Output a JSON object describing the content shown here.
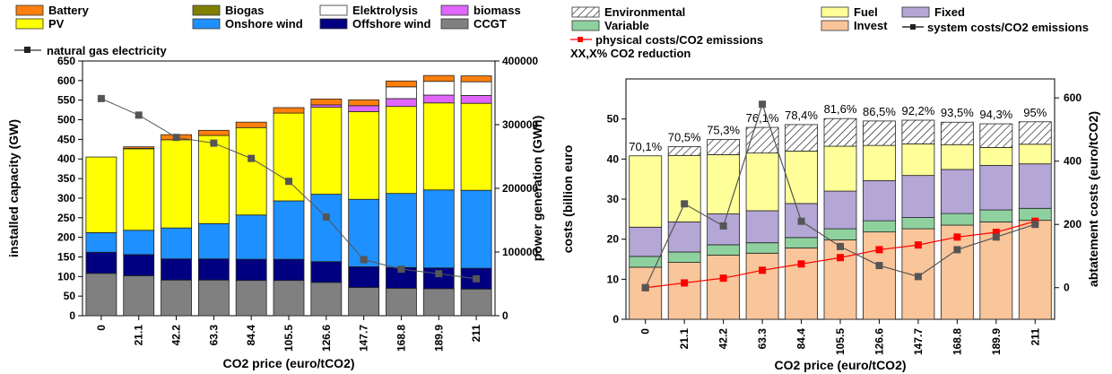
{
  "chart_data": [
    {
      "type": "bar",
      "stacked": true,
      "categories": [
        "0",
        "21.1",
        "42.2",
        "63.3",
        "84.4",
        "105.5",
        "126.6",
        "147.7",
        "168.8",
        "189.9",
        "211"
      ],
      "xlabel": "CO2 price (euro/tCO2)",
      "ylabel": "installed capacity (GW)",
      "ylim": [
        0,
        650
      ],
      "yticks": [
        0,
        50,
        100,
        150,
        200,
        250,
        300,
        350,
        400,
        450,
        500,
        550,
        600,
        650
      ],
      "y2label": "power generation (GWh)",
      "y2lim": [
        0,
        400000
      ],
      "y2ticks": [
        0,
        100000,
        200000,
        300000,
        400000
      ],
      "legend": [
        {
          "name": "Battery",
          "color": "#ff7f0e"
        },
        {
          "name": "Biogas",
          "color": "#808000"
        },
        {
          "name": "Elektrolysis",
          "color": "#ffffff"
        },
        {
          "name": "biomass",
          "color": "#e066ff"
        },
        {
          "name": "PV",
          "color": "#ffff00"
        },
        {
          "name": "Onshore wind",
          "color": "#1e90ff"
        },
        {
          "name": "Offshore wind",
          "color": "#000080"
        },
        {
          "name": "CCGT",
          "color": "#808080"
        }
      ],
      "stack_order": [
        "CCGT",
        "Offshore wind",
        "Onshore wind",
        "PV",
        "Biogas",
        "biomass",
        "Elektrolysis",
        "Battery"
      ],
      "series": [
        {
          "name": "CCGT",
          "color": "#808080",
          "values": [
            108,
            102,
            91,
            91,
            90,
            90,
            85,
            72,
            70,
            69,
            68
          ]
        },
        {
          "name": "Offshore wind",
          "color": "#000080",
          "values": [
            54,
            54,
            54,
            54,
            54,
            54,
            53,
            53,
            53,
            53,
            53
          ]
        },
        {
          "name": "Onshore wind",
          "color": "#1e90ff",
          "values": [
            50,
            62,
            79,
            90,
            113,
            149,
            172,
            172,
            189,
            199,
            199
          ]
        },
        {
          "name": "PV",
          "color": "#ffff00",
          "values": [
            193,
            208,
            225,
            225,
            223,
            224,
            222,
            224,
            222,
            222,
            222
          ]
        },
        {
          "name": "Biogas",
          "color": "#808000",
          "values": [
            0,
            1,
            0,
            0,
            0,
            0,
            0,
            0,
            0,
            0,
            0
          ]
        },
        {
          "name": "biomass",
          "color": "#e066ff",
          "values": [
            0,
            0,
            0,
            0,
            0,
            0,
            6,
            15,
            20,
            20,
            20
          ]
        },
        {
          "name": "Elektrolysis",
          "color": "#ffffff",
          "values": [
            0,
            0,
            0,
            0,
            0,
            0,
            0,
            0,
            30,
            35,
            35
          ]
        },
        {
          "name": "Battery",
          "color": "#ff7f0e",
          "values": [
            0,
            4,
            13,
            13,
            14,
            14,
            15,
            15,
            15,
            15,
            15
          ]
        }
      ],
      "line_series": {
        "name": "natural gas electricity",
        "axis": "right",
        "color": "#555555",
        "values": [
          341000,
          315000,
          280000,
          271000,
          247000,
          211000,
          155000,
          88000,
          73000,
          66000,
          58000
        ]
      }
    },
    {
      "type": "bar",
      "stacked": true,
      "categories": [
        "0",
        "21.1",
        "42.2",
        "63.3",
        "84.4",
        "105.5",
        "126.6",
        "147.7",
        "168.8",
        "189.9",
        "211"
      ],
      "xlabel": "CO2 price (euro/tCO2)",
      "ylabel": "costs (billion euro",
      "ylim": [
        0,
        60
      ],
      "yticks": [
        0,
        10,
        20,
        30,
        40,
        50
      ],
      "y2label": "abtatement costs (euro/tCO2)",
      "y2lim": [
        -100,
        660
      ],
      "y2ticks": [
        0,
        200,
        400,
        600
      ],
      "legend": [
        {
          "name": "Environmental",
          "color": "#ffffff",
          "hatch": true
        },
        {
          "name": "Fuel",
          "color": "#ffff99"
        },
        {
          "name": "Fixed",
          "color": "#b4a7d6"
        },
        {
          "name": "Variable",
          "color": "#8fd19e"
        },
        {
          "name": "Invest",
          "color": "#f9c59a"
        }
      ],
      "legend_lines": [
        {
          "name": "physical costs/CO2 emissions",
          "color": "#ff0000"
        },
        {
          "name": "system costs/CO2 emissions",
          "color": "#555555"
        }
      ],
      "legend_note": "XX,X% CO2 reduction",
      "stack_order": [
        "Invest",
        "Variable",
        "Fixed",
        "Fuel",
        "Environmental"
      ],
      "series": [
        {
          "name": "Invest",
          "color": "#f9c59a",
          "values": [
            13,
            14.2,
            16,
            16.5,
            17.8,
            19.8,
            21.8,
            22.6,
            23.5,
            24.3,
            24.7
          ]
        },
        {
          "name": "Variable",
          "color": "#8fd19e",
          "values": [
            2.7,
            2.6,
            2.6,
            2.6,
            2.6,
            2.8,
            2.8,
            2.8,
            2.9,
            3,
            3
          ]
        },
        {
          "name": "Fixed",
          "color": "#b4a7d6",
          "values": [
            7.3,
            7.5,
            7.7,
            8,
            8.5,
            9.4,
            10,
            10.5,
            11,
            11.1,
            11.1
          ]
        },
        {
          "name": "Fuel",
          "color": "#ffff99",
          "values": [
            17.8,
            16.6,
            14.8,
            14.4,
            13.1,
            11.2,
            8.8,
            7.9,
            6.2,
            4.5,
            4.9
          ]
        },
        {
          "name": "Environmental",
          "hatch": true,
          "color": "#ffffff",
          "values": [
            0,
            2.2,
            3.8,
            6.4,
            6.6,
            6.9,
            6.1,
            5.9,
            5.6,
            5.9,
            5.6
          ]
        }
      ],
      "labels": [
        "70,1%",
        "70,5%",
        "75,3%",
        "76,1%",
        "78,4%",
        "81,6%",
        "86,5%",
        "92,2%",
        "93,5%",
        "94,3%",
        "95%"
      ],
      "line_series": [
        {
          "name": "physical costs/CO2 emissions",
          "axis": "right",
          "color": "#ff0000",
          "marker": "square",
          "values": [
            0,
            15,
            30,
            55,
            75,
            95,
            120,
            135,
            160,
            175,
            210
          ]
        },
        {
          "name": "system costs/CO2 emissions",
          "axis": "right",
          "color": "#555555",
          "marker": "square",
          "values": [
            0,
            265,
            195,
            580,
            210,
            130,
            70,
            35,
            120,
            160,
            200
          ]
        }
      ]
    }
  ]
}
